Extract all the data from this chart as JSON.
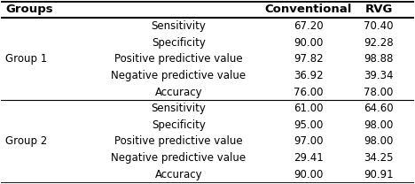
{
  "col_headers": [
    "Groups",
    "",
    "Conventional",
    "RVG"
  ],
  "rows": [
    {
      "group": "",
      "metric": "Sensitivity",
      "conv": "67.20",
      "rvg": "70.40"
    },
    {
      "group": "",
      "metric": "Specificity",
      "conv": "90.00",
      "rvg": "92.28"
    },
    {
      "group": "Group 1",
      "metric": "Positive predictive value",
      "conv": "97.82",
      "rvg": "98.88"
    },
    {
      "group": "",
      "metric": "Negative predictive value",
      "conv": "36.92",
      "rvg": "39.34"
    },
    {
      "group": "",
      "metric": "Accuracy",
      "conv": "76.00",
      "rvg": "78.00"
    },
    {
      "group": "",
      "metric": "Sensitivity",
      "conv": "61.00",
      "rvg": "64.60"
    },
    {
      "group": "",
      "metric": "Specificity",
      "conv": "95.00",
      "rvg": "98.00"
    },
    {
      "group": "Group 2",
      "metric": "Positive predictive value",
      "conv": "97.00",
      "rvg": "98.00"
    },
    {
      "group": "",
      "metric": "Negative predictive value",
      "conv": "29.41",
      "rvg": "34.25"
    },
    {
      "group": "",
      "metric": "Accuracy",
      "conv": "90.00",
      "rvg": "90.91"
    }
  ],
  "font_size": 8.5,
  "header_font_size": 9.5,
  "figsize": [
    4.68,
    2.08
  ],
  "dpi": 100
}
